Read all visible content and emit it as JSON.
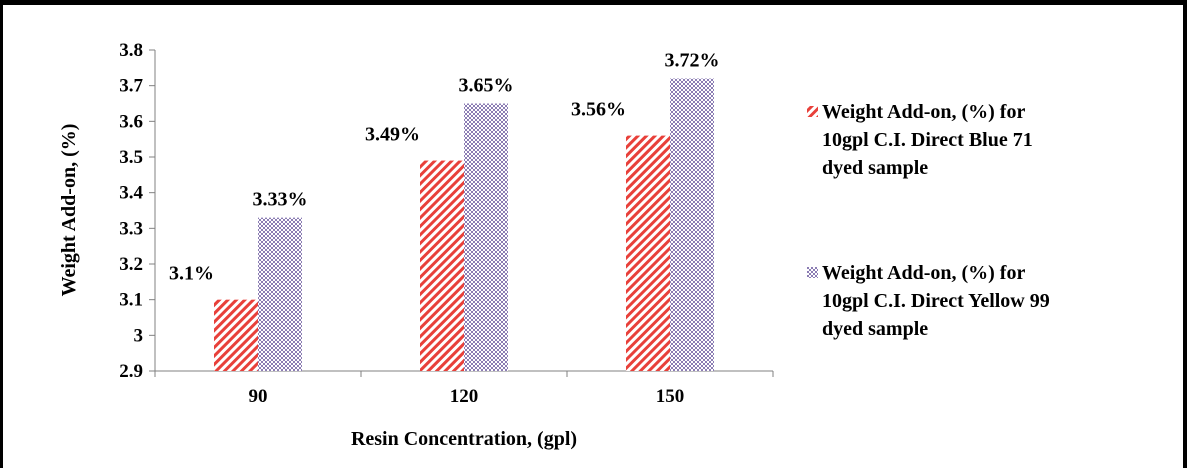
{
  "chart_data": {
    "type": "bar",
    "title": "",
    "xlabel": "Resin Concentration, (gpl)",
    "ylabel": "Weight Add-on, (%)",
    "categories": [
      "90",
      "120",
      "150"
    ],
    "ylim": [
      2.9,
      3.8
    ],
    "yticks": [
      "2.9",
      "3",
      "3.1",
      "3.2",
      "3.3",
      "3.4",
      "3.5",
      "3.6",
      "3.7",
      "3.8"
    ],
    "yticks_values": [
      2.9,
      3.0,
      3.1,
      3.2,
      3.3,
      3.4,
      3.5,
      3.6,
      3.7,
      3.8
    ],
    "grid": false,
    "legend_position": "right",
    "series": [
      {
        "name": "Weight Add-on, (%) for 10gpl C.I. Direct Blue 71 dyed sample",
        "legend_lines": [
          "Weight Add-on, (%) for",
          "10gpl C.I. Direct Blue 71",
          "dyed sample"
        ],
        "values": [
          3.1,
          3.49,
          3.56
        ],
        "labels": [
          "3.1%",
          "3.49%",
          "3.56%"
        ],
        "color": "#e8403a",
        "pattern": "diagonal-stripes"
      },
      {
        "name": "Weight Add-on, (%) for 10gpl C.I. Direct Yellow 99 dyed sample",
        "legend_lines": [
          "Weight Add-on, (%) for",
          "10gpl C.I. Direct Yellow 99",
          "dyed sample"
        ],
        "values": [
          3.33,
          3.65,
          3.72
        ],
        "labels": [
          "3.33%",
          "3.65%",
          "3.72%"
        ],
        "color": "#8c7db4",
        "pattern": "checker"
      }
    ]
  }
}
